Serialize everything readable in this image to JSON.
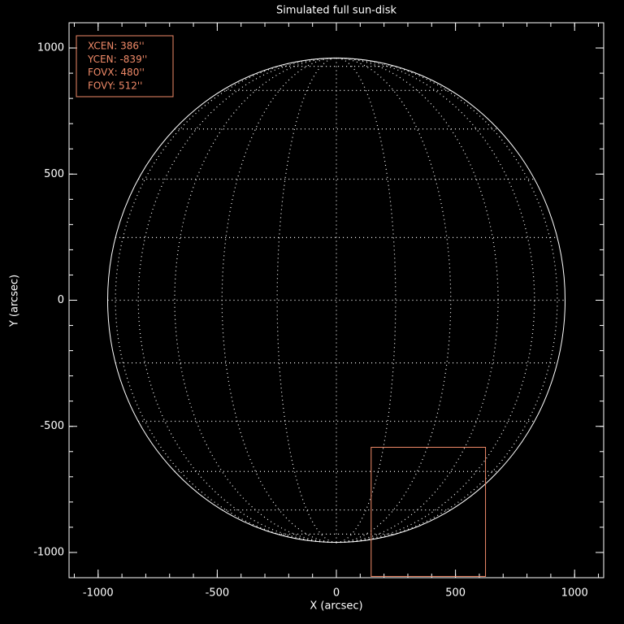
{
  "chart_data": {
    "type": "solar-disk",
    "title": "Simulated full sun-disk",
    "x_label": "X (arcsec)",
    "y_label": "Y (arcsec)",
    "xlim": [
      -1122,
      1122
    ],
    "ylim": [
      -1100,
      1100
    ],
    "xticks": [
      -1000,
      -500,
      0,
      500,
      1000
    ],
    "yticks": [
      -1000,
      -500,
      0,
      500,
      1000
    ],
    "minor_tick_step": 100,
    "disk_radius": 960,
    "grid_spacing": 15,
    "disk_color": "#ffffff",
    "box_color": "#f08a68",
    "box": {
      "xcen": {
        "value": 386,
        "label": "XCEN:  386''"
      },
      "ycen": {
        "value": -839,
        "label": "YCEN:  -839''"
      },
      "fovx": {
        "value": 480,
        "label": "FOVX:  480''"
      },
      "fovy": {
        "value": 512,
        "label": "FOVY:  512''"
      }
    }
  }
}
